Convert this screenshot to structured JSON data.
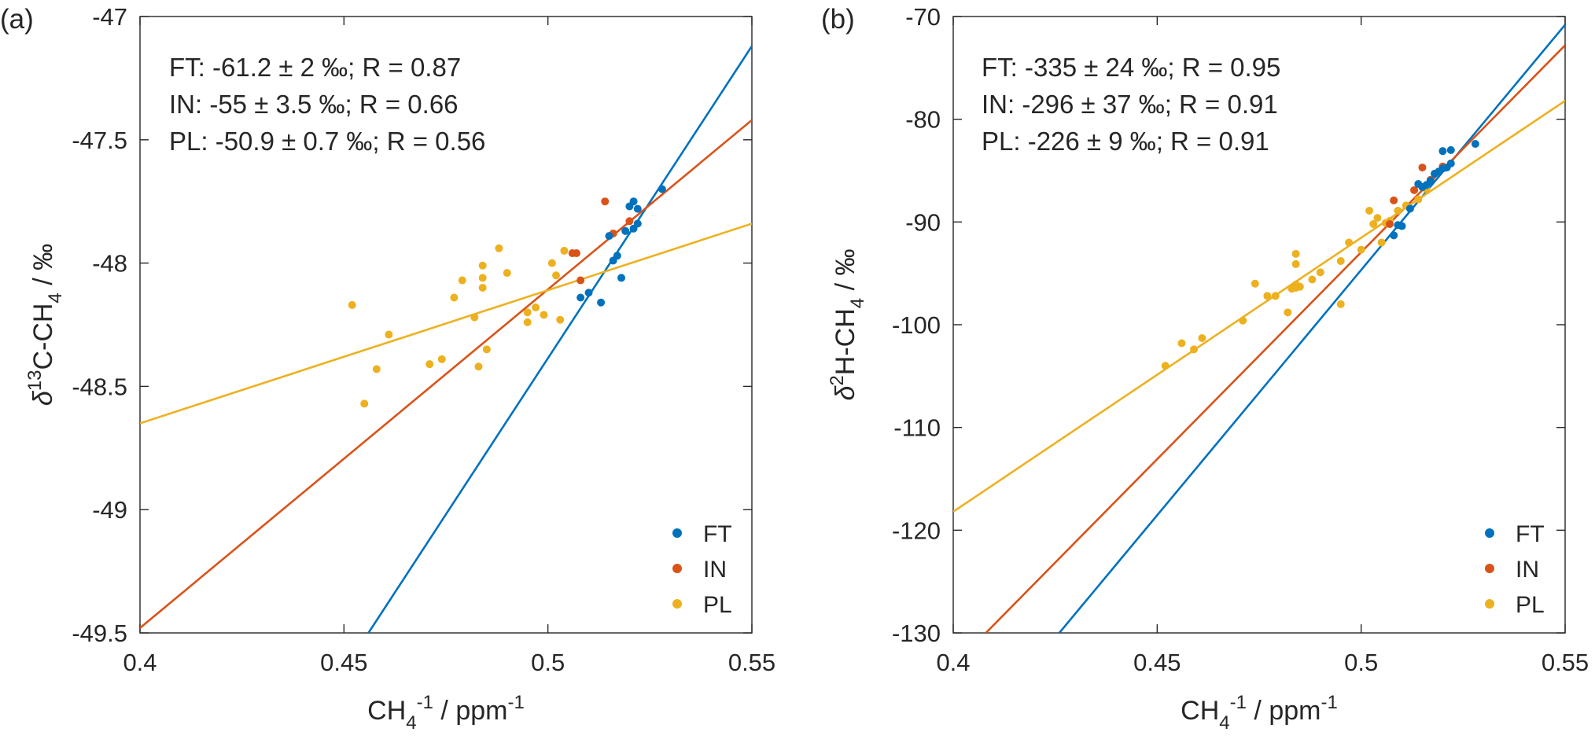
{
  "chart_data": [
    {
      "type": "scatter",
      "panel_label": "(a)",
      "xlabel": "CH4-1 / ppm-1",
      "ylabel": "δ13C-CH4 / ‰",
      "xlim": [
        0.4,
        0.55
      ],
      "ylim": [
        -49.5,
        -47
      ],
      "x_ticks": [
        "0.4",
        "0.45",
        "0.5",
        "0.55"
      ],
      "y_ticks": [
        "-47",
        "-47.5",
        "-48",
        "-48.5",
        "-49",
        "-49.5"
      ],
      "grid": false,
      "legend_position": "bottom-right",
      "annotations": [
        "FT: -61.2 ± 2 ‰; R = 0.87",
        "IN: -55 ± 3.5 ‰; R = 0.66",
        "PL: -50.9 ± 0.7 ‰; R = 0.56"
      ],
      "series": [
        {
          "name": "FT",
          "color": "#0072BD",
          "fit": [
            [
              0.456,
              -49.5
            ],
            [
              0.55,
              -47.12
            ]
          ],
          "points": [
            [
              0.508,
              -48.14
            ],
            [
              0.51,
              -48.12
            ],
            [
              0.513,
              -48.16
            ],
            [
              0.515,
              -47.89
            ],
            [
              0.516,
              -47.99
            ],
            [
              0.517,
              -47.97
            ],
            [
              0.518,
              -48.06
            ],
            [
              0.519,
              -47.87
            ],
            [
              0.52,
              -47.77
            ],
            [
              0.521,
              -47.86
            ],
            [
              0.521,
              -47.75
            ],
            [
              0.522,
              -47.84
            ],
            [
              0.522,
              -47.78
            ],
            [
              0.528,
              -47.7
            ]
          ]
        },
        {
          "name": "IN",
          "color": "#D95319",
          "fit": [
            [
              0.4,
              -49.48
            ],
            [
              0.55,
              -47.42
            ]
          ],
          "points": [
            [
              0.506,
              -47.96
            ],
            [
              0.507,
              -47.96
            ],
            [
              0.508,
              -48.07
            ],
            [
              0.514,
              -47.75
            ],
            [
              0.516,
              -47.88
            ],
            [
              0.52,
              -47.83
            ]
          ]
        },
        {
          "name": "PL",
          "color": "#EDB120",
          "fit": [
            [
              0.4,
              -48.65
            ],
            [
              0.55,
              -47.84
            ]
          ],
          "points": [
            [
              0.452,
              -48.17
            ],
            [
              0.455,
              -48.57
            ],
            [
              0.458,
              -48.43
            ],
            [
              0.461,
              -48.29
            ],
            [
              0.471,
              -48.41
            ],
            [
              0.474,
              -48.39
            ],
            [
              0.477,
              -48.14
            ],
            [
              0.479,
              -48.07
            ],
            [
              0.482,
              -48.22
            ],
            [
              0.483,
              -48.42
            ],
            [
              0.484,
              -48.06
            ],
            [
              0.484,
              -48.1
            ],
            [
              0.484,
              -48.01
            ],
            [
              0.485,
              -48.35
            ],
            [
              0.488,
              -47.94
            ],
            [
              0.49,
              -48.04
            ],
            [
              0.495,
              -48.2
            ],
            [
              0.495,
              -48.24
            ],
            [
              0.497,
              -48.18
            ],
            [
              0.499,
              -48.21
            ],
            [
              0.501,
              -48.0
            ],
            [
              0.502,
              -48.05
            ],
            [
              0.503,
              -48.23
            ],
            [
              0.504,
              -47.95
            ]
          ]
        }
      ]
    },
    {
      "type": "scatter",
      "panel_label": "(b)",
      "xlabel": "CH4-1 / ppm-1",
      "ylabel": "δ2H-CH4 / ‰",
      "xlim": [
        0.4,
        0.55
      ],
      "ylim": [
        -130,
        -70
      ],
      "x_ticks": [
        "0.4",
        "0.45",
        "0.5",
        "0.55"
      ],
      "y_ticks": [
        "-70",
        "-80",
        "-90",
        "-100",
        "-110",
        "-120",
        "-130"
      ],
      "grid": false,
      "legend_position": "bottom-right",
      "annotations": [
        "FT: -335 ± 24 ‰; R = 0.95",
        "IN: -296 ± 37 ‰; R = 0.91",
        "PL: -226 ± 9 ‰; R = 0.91"
      ],
      "series": [
        {
          "name": "FT",
          "color": "#0072BD",
          "fit": [
            [
              0.426,
              -130
            ],
            [
              0.55,
              -70.8
            ]
          ],
          "points": [
            [
              0.508,
              -91.3
            ],
            [
              0.509,
              -90.3
            ],
            [
              0.51,
              -90.4
            ],
            [
              0.512,
              -88.7
            ],
            [
              0.514,
              -86.3
            ],
            [
              0.515,
              -86.6
            ],
            [
              0.516,
              -86.4
            ],
            [
              0.517,
              -86.0
            ],
            [
              0.518,
              -85.3
            ],
            [
              0.519,
              -85.1
            ],
            [
              0.52,
              -84.8
            ],
            [
              0.52,
              -83.1
            ],
            [
              0.521,
              -84.7
            ],
            [
              0.522,
              -84.3
            ],
            [
              0.522,
              -83.0
            ],
            [
              0.528,
              -82.4
            ]
          ]
        },
        {
          "name": "IN",
          "color": "#D95319",
          "fit": [
            [
              0.408,
              -130
            ],
            [
              0.55,
              -72.8
            ]
          ],
          "points": [
            [
              0.507,
              -90.2
            ],
            [
              0.508,
              -87.9
            ],
            [
              0.513,
              -86.9
            ],
            [
              0.515,
              -84.7
            ],
            [
              0.517,
              -85.9
            ],
            [
              0.52,
              -84.6
            ]
          ]
        },
        {
          "name": "PL",
          "color": "#EDB120",
          "fit": [
            [
              0.4,
              -118.2
            ],
            [
              0.55,
              -78.2
            ]
          ],
          "points": [
            [
              0.452,
              -104.0
            ],
            [
              0.456,
              -101.8
            ],
            [
              0.459,
              -102.4
            ],
            [
              0.461,
              -101.3
            ],
            [
              0.471,
              -99.6
            ],
            [
              0.474,
              -96.0
            ],
            [
              0.477,
              -97.2
            ],
            [
              0.479,
              -97.2
            ],
            [
              0.482,
              -98.8
            ],
            [
              0.483,
              -96.5
            ],
            [
              0.484,
              -96.4
            ],
            [
              0.484,
              -96.1
            ],
            [
              0.484,
              -94.1
            ],
            [
              0.484,
              -93.1
            ],
            [
              0.485,
              -96.3
            ],
            [
              0.488,
              -95.6
            ],
            [
              0.49,
              -94.9
            ],
            [
              0.495,
              -93.8
            ],
            [
              0.495,
              -98.0
            ],
            [
              0.497,
              -92.0
            ],
            [
              0.5,
              -92.7
            ],
            [
              0.502,
              -88.9
            ],
            [
              0.503,
              -90.2
            ],
            [
              0.504,
              -89.6
            ],
            [
              0.505,
              -92.0
            ],
            [
              0.506,
              -90.1
            ],
            [
              0.507,
              -89.9
            ],
            [
              0.509,
              -88.9
            ],
            [
              0.511,
              -88.4
            ],
            [
              0.514,
              -87.8
            ],
            [
              0.516,
              -86.8
            ]
          ]
        }
      ]
    }
  ]
}
